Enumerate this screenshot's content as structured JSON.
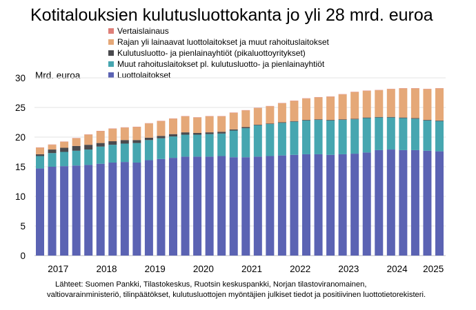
{
  "chart_data": {
    "type": "bar",
    "stacked": true,
    "title": "Kotitalouksien kulutusluottokanta jo yli 28 mrd. euroa",
    "ylabel": "Mrd. euroa",
    "ylim": [
      0,
      30
    ],
    "yticks": [
      0,
      5,
      10,
      15,
      20,
      25,
      30
    ],
    "xtick_labels": [
      "2017",
      "2018",
      "2019",
      "2020",
      "2021",
      "2022",
      "2023",
      "2024",
      "2025"
    ],
    "grid": true,
    "legend_position": "top-left",
    "categories": [
      "2017Q1",
      "2017Q2",
      "2017Q3",
      "2017Q4",
      "2018Q1",
      "2018Q2",
      "2018Q3",
      "2018Q4",
      "2019Q1",
      "2019Q2",
      "2019Q3",
      "2019Q4",
      "2020Q1",
      "2020Q2",
      "2020Q3",
      "2020Q4",
      "2021Q1",
      "2021Q2",
      "2021Q3",
      "2021Q4",
      "2022Q1",
      "2022Q2",
      "2022Q3",
      "2022Q4",
      "2023Q1",
      "2023Q2",
      "2023Q3",
      "2023Q4",
      "2024Q1",
      "2024Q2",
      "2024Q3",
      "2024Q4",
      "2025Q1",
      "2025Q2"
    ],
    "series": [
      {
        "name": "Luottolaitokset",
        "color": "#5b63b3",
        "values": [
          14.7,
          15.0,
          15.1,
          15.2,
          15.3,
          15.5,
          15.7,
          15.8,
          15.7,
          16.1,
          16.3,
          16.5,
          16.7,
          16.7,
          16.7,
          16.8,
          16.6,
          16.6,
          16.7,
          16.8,
          16.9,
          17.0,
          17.1,
          17.1,
          17.0,
          17.1,
          17.2,
          17.4,
          17.8,
          17.9,
          17.8,
          17.8,
          17.7,
          17.6
        ]
      },
      {
        "name": "Muut rahoituslaitokset pl. kulutusluotto- ja pienlainayhtiöt",
        "color": "#46a6b0",
        "values": [
          2.1,
          2.3,
          2.4,
          2.5,
          2.6,
          2.9,
          3.0,
          3.1,
          3.3,
          3.4,
          3.5,
          3.6,
          3.7,
          3.7,
          3.8,
          3.8,
          4.5,
          4.9,
          5.3,
          5.4,
          5.5,
          5.6,
          5.7,
          5.8,
          5.8,
          5.8,
          5.8,
          5.8,
          5.5,
          5.4,
          5.4,
          5.3,
          5.1,
          5.1
        ]
      },
      {
        "name": "Kulutusluotto- ja pienlainayhtiöt (pikaluottoyritykset)",
        "color": "#4a4a4e",
        "values": [
          0.3,
          0.6,
          0.7,
          0.8,
          0.8,
          0.6,
          0.6,
          0.6,
          0.5,
          0.4,
          0.4,
          0.4,
          0.4,
          0.3,
          0.3,
          0.3,
          0.2,
          0.2,
          0.1,
          0.1,
          0.1,
          0.1,
          0.1,
          0.1,
          0.1,
          0.1,
          0.1,
          0.1,
          0.1,
          0.1,
          0.1,
          0.1,
          0.1,
          0.1
        ]
      },
      {
        "name": "Rajan yli lainaavat luottolaitokset ja muut rahoituslaitokset",
        "color": "#e5a878",
        "values": [
          1.1,
          0.8,
          1.0,
          1.3,
          1.7,
          2.0,
          2.1,
          2.1,
          2.2,
          2.4,
          2.5,
          2.6,
          2.7,
          2.6,
          2.7,
          2.6,
          2.8,
          2.8,
          2.8,
          2.9,
          3.2,
          3.4,
          3.6,
          3.7,
          3.9,
          4.2,
          4.5,
          4.5,
          4.5,
          4.7,
          4.9,
          5.0,
          5.2,
          5.4
        ]
      },
      {
        "name": "Vertaislainaus",
        "color": "#de7f78",
        "values": [
          0.05,
          0.05,
          0.05,
          0.05,
          0.05,
          0.05,
          0.05,
          0.05,
          0.05,
          0.05,
          0.05,
          0.05,
          0.05,
          0.05,
          0.05,
          0.05,
          0.05,
          0.05,
          0.05,
          0.05,
          0.05,
          0.05,
          0.05,
          0.05,
          0.05,
          0.05,
          0.05,
          0.05,
          0.05,
          0.05,
          0.05,
          0.05,
          0.05,
          0.05
        ]
      }
    ],
    "source": [
      "Lähteet: Suomen Pankki, Tilastokeskus, Ruotsin keskuspankki, Norjan tilastoviranomainen,",
      "valtiovarainministeriö, tilinpäätökset, kulutusluottojen myöntäjien julkiset tiedot ja positiivinen luottotietorekisteri."
    ]
  }
}
